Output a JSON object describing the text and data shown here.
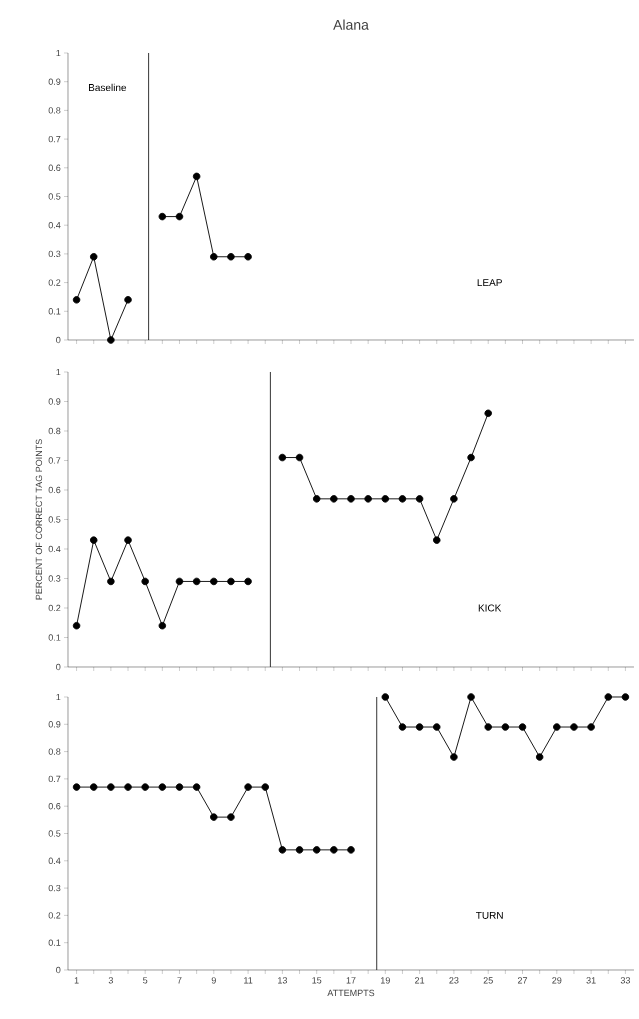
{
  "chart_data": [
    {
      "type": "line",
      "title": "Alana",
      "annotations": [
        "Baseline",
        "LEAP"
      ],
      "marker": "circle",
      "line_style": "solid",
      "tick_labels": "y",
      "xlim": [
        0.5,
        33.5
      ],
      "ylim": [
        0,
        1
      ],
      "xticks": [
        1,
        {
          "value": 2,
          "label": null
        },
        3,
        {
          "value": 4,
          "label": null
        },
        5,
        {
          "value": 6,
          "label": null
        },
        7,
        {
          "value": 8,
          "label": null
        },
        9,
        {
          "value": 10,
          "label": null
        },
        11,
        {
          "value": 12,
          "label": null
        },
        13,
        {
          "value": 14,
          "label": null
        },
        15,
        {
          "value": 16,
          "label": null
        },
        17,
        {
          "value": 18,
          "label": null
        },
        19,
        {
          "value": 20,
          "label": null
        },
        21,
        {
          "value": 22,
          "label": null
        },
        23,
        {
          "value": 24,
          "label": null
        },
        25,
        {
          "value": 26,
          "label": null
        },
        27,
        {
          "value": 28,
          "label": null
        },
        29,
        {
          "value": 30,
          "label": null
        },
        31,
        {
          "value": 32,
          "label": null
        },
        33
      ],
      "yticks": [
        0,
        0.1,
        0.2,
        0.3,
        0.4,
        0.5,
        0.6,
        0.7,
        0.8,
        0.9,
        1
      ],
      "ref_lines": [
        {
          "axis": "x",
          "value": 5.2,
          "color": "#000000"
        }
      ],
      "series": [
        {
          "color": "#000000",
          "x": [
            1,
            2,
            3,
            4
          ],
          "values": [
            0.14,
            0.29,
            0,
            0.14
          ]
        },
        {
          "color": "#000000",
          "x": [
            6,
            7,
            8,
            9,
            10,
            11
          ],
          "values": [
            0.43,
            0.43,
            0.57,
            0.29,
            0.29,
            0.29
          ]
        }
      ]
    },
    {
      "type": "line",
      "ylabel": "PERCENT OF CORRECT TAG POINTS",
      "annotations": [
        "KICK"
      ],
      "marker": "circle",
      "line_style": "solid",
      "tick_labels": "y",
      "xlim": [
        0.5,
        33.5
      ],
      "ylim": [
        0,
        1
      ],
      "xticks": [
        1,
        {
          "value": 2,
          "label": null
        },
        3,
        {
          "value": 4,
          "label": null
        },
        5,
        {
          "value": 6,
          "label": null
        },
        7,
        {
          "value": 8,
          "label": null
        },
        9,
        {
          "value": 10,
          "label": null
        },
        11,
        {
          "value": 12,
          "label": null
        },
        13,
        {
          "value": 14,
          "label": null
        },
        15,
        {
          "value": 16,
          "label": null
        },
        17,
        {
          "value": 18,
          "label": null
        },
        19,
        {
          "value": 20,
          "label": null
        },
        21,
        {
          "value": 22,
          "label": null
        },
        23,
        {
          "value": 24,
          "label": null
        },
        25,
        {
          "value": 26,
          "label": null
        },
        27,
        {
          "value": 28,
          "label": null
        },
        29,
        {
          "value": 30,
          "label": null
        },
        31,
        {
          "value": 32,
          "label": null
        },
        33
      ],
      "yticks": [
        0,
        0.1,
        0.2,
        0.3,
        0.4,
        0.5,
        0.6,
        0.7,
        0.8,
        0.9,
        1
      ],
      "ref_lines": [
        {
          "axis": "x",
          "value": 12.3,
          "color": "#000000"
        }
      ],
      "series": [
        {
          "color": "#000000",
          "x": [
            1,
            2,
            3,
            4,
            5,
            6,
            7,
            8,
            9,
            10,
            11
          ],
          "values": [
            0.14,
            0.43,
            0.29,
            0.43,
            0.29,
            0.14,
            0.29,
            0.29,
            0.29,
            0.29,
            0.29
          ]
        },
        {
          "color": "#000000",
          "x": [
            13,
            14,
            15,
            16,
            17,
            18,
            19,
            20,
            21,
            22,
            23,
            24,
            25
          ],
          "values": [
            0.71,
            0.71,
            0.57,
            0.57,
            0.57,
            0.57,
            0.57,
            0.57,
            0.57,
            0.43,
            0.57,
            0.71,
            0.86
          ]
        }
      ]
    },
    {
      "type": "line",
      "xlabel": "ATTEMPTS",
      "annotations": [
        "TURN"
      ],
      "marker": "circle",
      "line_style": "solid",
      "xlim": [
        0.5,
        33.5
      ],
      "ylim": [
        0,
        1
      ],
      "xticks": [
        1,
        {
          "value": 2,
          "label": null
        },
        3,
        {
          "value": 4,
          "label": null
        },
        5,
        {
          "value": 6,
          "label": null
        },
        7,
        {
          "value": 8,
          "label": null
        },
        9,
        {
          "value": 10,
          "label": null
        },
        11,
        {
          "value": 12,
          "label": null
        },
        13,
        {
          "value": 14,
          "label": null
        },
        15,
        {
          "value": 16,
          "label": null
        },
        17,
        {
          "value": 18,
          "label": null
        },
        19,
        {
          "value": 20,
          "label": null
        },
        21,
        {
          "value": 22,
          "label": null
        },
        23,
        {
          "value": 24,
          "label": null
        },
        25,
        {
          "value": 26,
          "label": null
        },
        27,
        {
          "value": 28,
          "label": null
        },
        29,
        {
          "value": 30,
          "label": null
        },
        31,
        {
          "value": 32,
          "label": null
        },
        33
      ],
      "yticks": [
        0,
        0.1,
        0.2,
        0.3,
        0.4,
        0.5,
        0.6,
        0.7,
        0.8,
        0.9,
        1
      ],
      "ref_lines": [
        {
          "axis": "x",
          "value": 18.5,
          "color": "#000000"
        }
      ],
      "series": [
        {
          "color": "#000000",
          "x": [
            1,
            2,
            3,
            4,
            5,
            6,
            7,
            8,
            9,
            10,
            11,
            12,
            13,
            14,
            15,
            16,
            17
          ],
          "values": [
            0.67,
            0.67,
            0.67,
            0.67,
            0.67,
            0.67,
            0.67,
            0.67,
            0.56,
            0.56,
            0.67,
            0.67,
            0.44,
            0.44,
            0.44,
            0.44,
            0.44
          ]
        },
        {
          "color": "#000000",
          "x": [
            19,
            20,
            21,
            22,
            23,
            24,
            25,
            26,
            27,
            28,
            29,
            30,
            31,
            32,
            33
          ],
          "values": [
            1,
            0.89,
            0.89,
            0.89,
            0.78,
            1,
            0.89,
            0.89,
            0.89,
            0.78,
            0.89,
            0.89,
            0.89,
            1,
            1
          ]
        }
      ]
    }
  ]
}
